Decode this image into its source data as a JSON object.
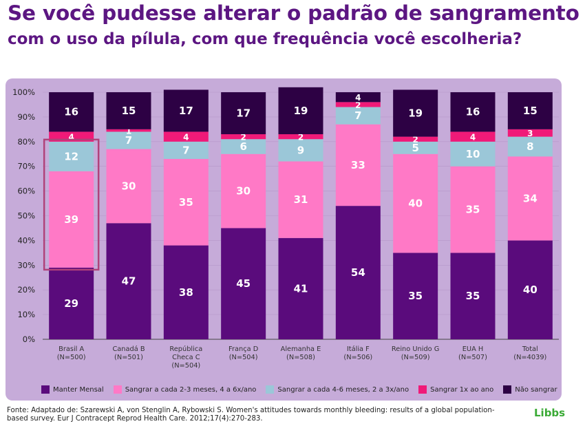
{
  "title": {
    "line1": "Se você pudesse alterar o padrão de sangramento",
    "line2_pre": "com o uso da pílula, com que ",
    "line2_hl": "frequência",
    "line2_post": " você escolheria?"
  },
  "source": "Fonte: Adaptado de: Szarewski A, von Stenglin A, Rybowski S. Women's attitudes towards monthly bleeding: results of a global population-based survey. Eur J Contracept Reprod Health Care. 2012;17(4):270-283.",
  "brand": "Libbs",
  "colors": {
    "title": "#5c1682",
    "panel_bg": "#c6abd9",
    "highlight_box": "#b0427a",
    "brand": "#3aaa35"
  },
  "chart_data": {
    "type": "bar",
    "stacked": true,
    "percent": true,
    "yticks": [
      "0%",
      "10%",
      "20%",
      "30%",
      "40%",
      "50%",
      "60%",
      "70%",
      "80%",
      "90%",
      "100%"
    ],
    "ylim": [
      0,
      100
    ],
    "categories": [
      {
        "name": "Brasil A",
        "n": "(N=500)"
      },
      {
        "name": "Canadá B",
        "n": "(N=501)"
      },
      {
        "name": "República Checa C",
        "n": "(N=504)"
      },
      {
        "name": "França D",
        "n": "(N=504)"
      },
      {
        "name": "Alemanha E",
        "n": "(N=508)"
      },
      {
        "name": "Itália F",
        "n": "(N=506)"
      },
      {
        "name": "Reino Unido G",
        "n": "(N=509)"
      },
      {
        "name": "EUA H",
        "n": "(N=507)"
      },
      {
        "name": "Total",
        "n": "(N=4039)"
      }
    ],
    "series": [
      {
        "name": "Manter Mensal",
        "color": "#5a0b7c",
        "text": "#ffffff",
        "values": [
          29,
          47,
          38,
          45,
          41,
          54,
          35,
          35,
          40
        ]
      },
      {
        "name": "Sangrar a cada 2-3 meses, 4 a 6x/ano",
        "color": "#ff79c6",
        "text": "#ffffff",
        "values": [
          39,
          30,
          35,
          30,
          31,
          33,
          40,
          35,
          34
        ]
      },
      {
        "name": "Sangrar a cada 4-6 meses, 2 a 3x/ano",
        "color": "#9bc7d8",
        "text": "#ffffff",
        "values": [
          12,
          7,
          7,
          6,
          9,
          7,
          5,
          10,
          8
        ]
      },
      {
        "name": "Sangrar 1x ao ano",
        "color": "#f01a78",
        "text": "#ffffff",
        "values": [
          4,
          1,
          4,
          2,
          2,
          2,
          2,
          4,
          3
        ]
      },
      {
        "name": "Não sangrar",
        "color": "#2d0144",
        "text": "#ffffff",
        "values": [
          16,
          15,
          17,
          17,
          19,
          4,
          19,
          16,
          15
        ]
      }
    ],
    "highlight": {
      "category_index": 0,
      "series_index": 1
    },
    "legend": "bottom"
  }
}
